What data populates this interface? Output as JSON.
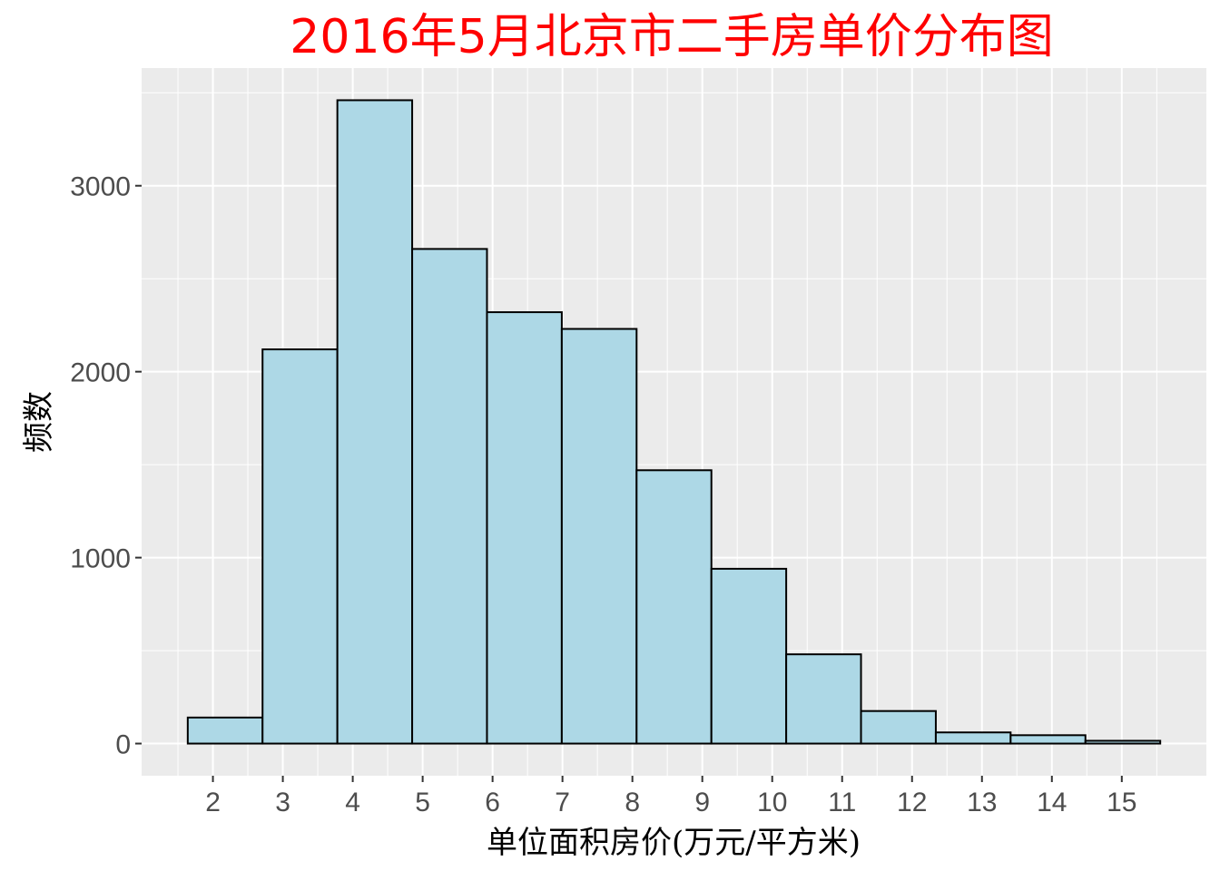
{
  "chart_data": {
    "type": "bar",
    "title": "2016年5月北京市二手房单价分布图",
    "xlabel": "单位面积房价(万元/平方米)",
    "ylabel": "频数",
    "bin_edges": [
      1.64,
      2.71,
      3.78,
      4.85,
      5.92,
      6.99,
      8.06,
      9.13,
      10.2,
      11.27,
      12.34,
      13.41,
      14.48,
      15.55
    ],
    "values": [
      140,
      2120,
      3460,
      2660,
      2320,
      2230,
      1470,
      940,
      480,
      175,
      60,
      45,
      15
    ],
    "x_ticks": [
      "2",
      "3",
      "4",
      "5",
      "6",
      "7",
      "8",
      "9",
      "10",
      "11",
      "12",
      "13",
      "14",
      "15"
    ],
    "y_ticks": [
      "0",
      "1000",
      "2000",
      "3000"
    ],
    "xlim": [
      0.98,
      16.21
    ],
    "ylim": [
      -173,
      3633
    ],
    "grid": true,
    "colors": {
      "bar_fill": "#add8e6",
      "bar_stroke": "#000000",
      "panel": "#ebebeb",
      "grid": "#ffffff",
      "title": "#ff0000"
    }
  }
}
